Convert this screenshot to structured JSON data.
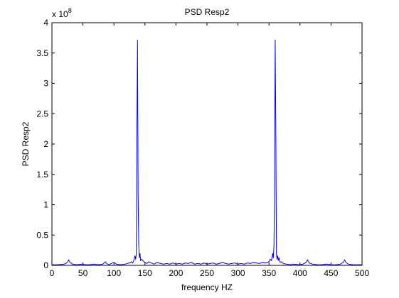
{
  "chart_data": {
    "type": "line",
    "title": "PSD Resp2",
    "xlabel": "frequency HZ",
    "ylabel": "PSD Resp2",
    "y_multiplier_base": "x 10",
    "y_multiplier_exponent": "8",
    "xlim": [
      0,
      500
    ],
    "ylim": [
      0,
      4
    ],
    "xticks": [
      "0",
      "50",
      "100",
      "150",
      "200",
      "250",
      "300",
      "350",
      "400",
      "450",
      "500"
    ],
    "yticks": [
      "0",
      "0.5",
      "1",
      "1.5",
      "2",
      "2.5",
      "3",
      "3.5",
      "4"
    ],
    "grid": false,
    "line_color": "#0000ff",
    "series": [
      {
        "x": [
          0,
          10,
          20,
          25,
          27,
          29,
          33,
          40,
          48,
          55,
          60,
          68,
          75,
          82,
          86,
          88,
          92,
          100,
          104,
          110,
          118,
          125,
          128,
          130,
          132,
          134,
          135,
          136,
          137,
          138,
          139,
          140,
          141,
          142,
          143,
          145,
          148,
          150,
          153,
          156,
          160,
          165,
          170,
          175,
          180,
          185,
          190,
          195,
          200,
          205,
          210,
          215,
          220,
          225,
          230,
          235,
          240,
          245,
          250,
          255,
          260,
          265,
          270,
          275,
          280,
          285,
          290,
          295,
          300,
          305,
          310,
          315,
          320,
          325,
          330,
          335,
          340,
          345,
          350,
          352,
          354,
          356,
          357,
          358,
          359,
          360,
          361,
          362,
          363,
          364,
          365,
          366,
          368,
          370,
          373,
          378,
          385,
          390,
          398,
          405,
          410,
          412,
          415,
          420,
          428,
          435,
          442,
          450,
          458,
          465,
          470,
          472,
          474,
          478,
          485,
          492,
          500
        ],
        "y": [
          0.01,
          0.01,
          0.02,
          0.05,
          0.09,
          0.05,
          0.02,
          0.01,
          0.02,
          0.01,
          0.01,
          0.02,
          0.01,
          0.02,
          0.06,
          0.03,
          0.01,
          0.05,
          0.02,
          0.01,
          0.02,
          0.04,
          0.06,
          0.04,
          0.08,
          0.16,
          0.1,
          0.18,
          2.25,
          3.72,
          1.15,
          0.32,
          0.12,
          0.2,
          0.08,
          0.1,
          0.06,
          0.05,
          0.03,
          0.06,
          0.04,
          0.02,
          0.05,
          0.03,
          0.02,
          0.03,
          0.02,
          0.04,
          0.02,
          0.03,
          0.02,
          0.04,
          0.03,
          0.05,
          0.02,
          0.03,
          0.02,
          0.04,
          0.02,
          0.03,
          0.04,
          0.02,
          0.03,
          0.05,
          0.03,
          0.02,
          0.03,
          0.04,
          0.02,
          0.03,
          0.02,
          0.04,
          0.03,
          0.05,
          0.04,
          0.03,
          0.05,
          0.04,
          0.06,
          0.1,
          0.08,
          0.2,
          0.12,
          0.32,
          1.15,
          3.72,
          2.25,
          0.18,
          0.1,
          0.16,
          0.08,
          0.12,
          0.05,
          0.06,
          0.03,
          0.02,
          0.01,
          0.02,
          0.01,
          0.02,
          0.05,
          0.09,
          0.04,
          0.02,
          0.01,
          0.01,
          0.02,
          0.01,
          0.01,
          0.02,
          0.05,
          0.09,
          0.05,
          0.02,
          0.01,
          0.01,
          0.01
        ]
      }
    ]
  }
}
